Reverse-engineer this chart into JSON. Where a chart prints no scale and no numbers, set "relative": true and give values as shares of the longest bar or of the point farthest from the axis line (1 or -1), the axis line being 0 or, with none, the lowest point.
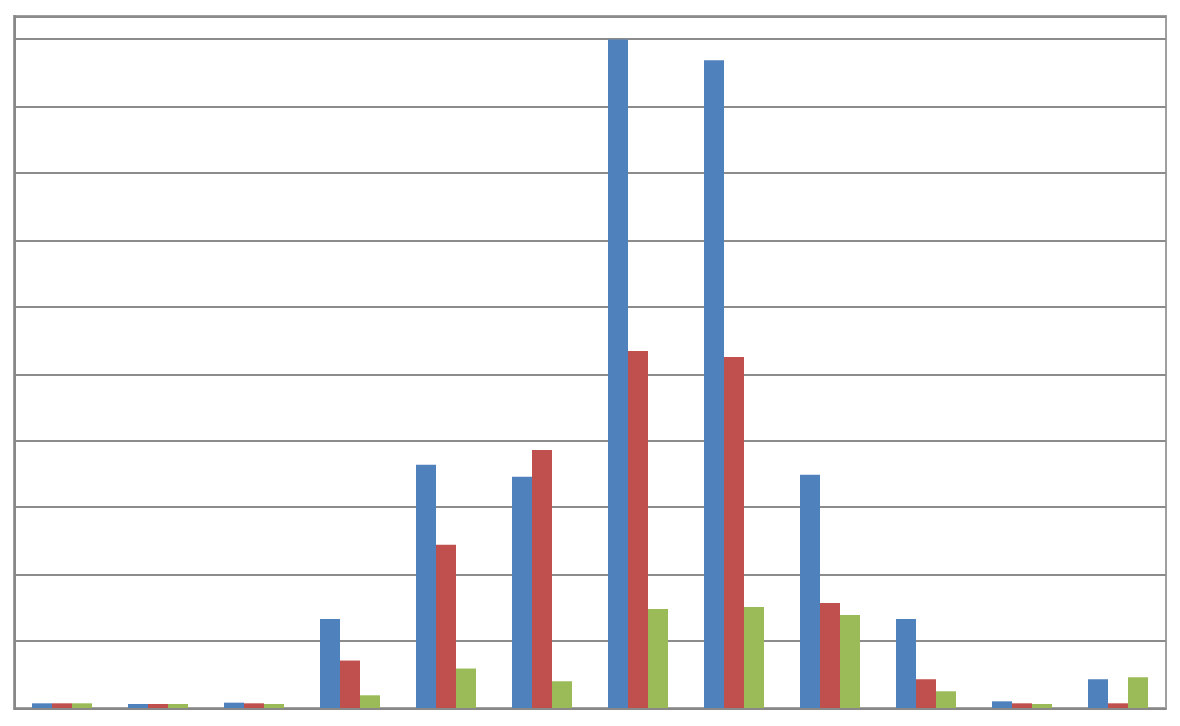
{
  "chart_data": {
    "type": "bar",
    "relative": true,
    "grid": "y",
    "categories": [
      null,
      null,
      null,
      null,
      null,
      null,
      null,
      null,
      null,
      null,
      null,
      null
    ],
    "series": [
      {
        "color": "#4f81bd",
        "values": [
          0.007,
          0.006,
          0.008,
          0.133,
          0.364,
          0.346,
          1,
          0.969,
          0.349,
          0.133,
          0.01,
          0.043
        ]
      },
      {
        "color": "#c0504d",
        "values": [
          0.007,
          0.006,
          0.007,
          0.071,
          0.244,
          0.386,
          0.534,
          0.525,
          0.157,
          0.043,
          0.007,
          0.007
        ]
      },
      {
        "color": "#9bbb59",
        "values": [
          0.007,
          0.006,
          0.006,
          0.019,
          0.059,
          0.04,
          0.148,
          0.151,
          0.139,
          0.025,
          0.006,
          0.046
        ]
      }
    ]
  }
}
